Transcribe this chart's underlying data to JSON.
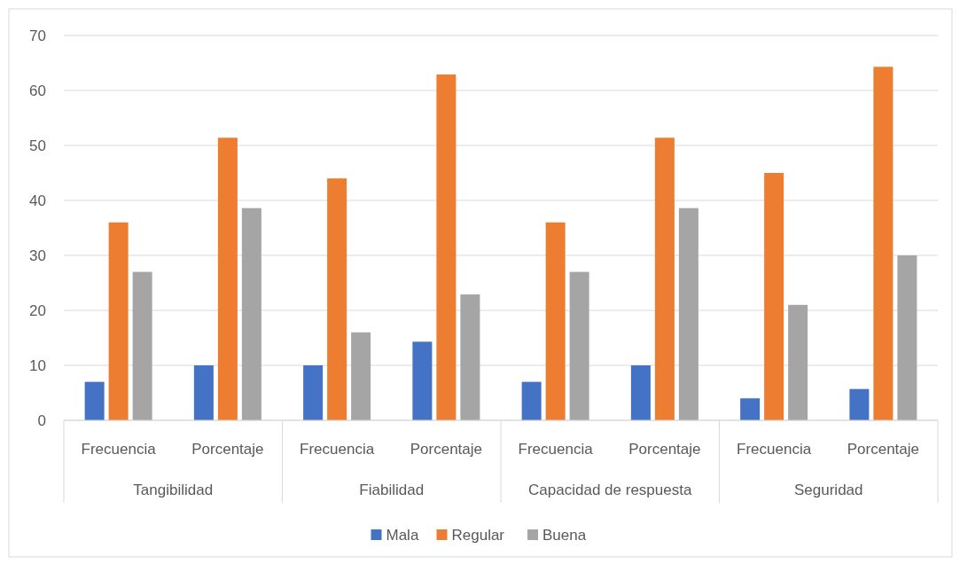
{
  "chart_data": {
    "type": "bar",
    "categories": [
      "Frecuencia",
      "Porcentaje",
      "Frecuencia",
      "Porcentaje",
      "Frecuencia",
      "Porcentaje",
      "Frecuencia",
      "Porcentaje"
    ],
    "annotations": [
      "Tangibilidad",
      "Fiabilidad",
      "Capacidad de respuesta",
      "Seguridad"
    ],
    "series": [
      {
        "name": "Mala",
        "color": "#4472c4",
        "values": [
          7,
          10,
          10,
          14.3,
          7,
          10,
          4,
          5.7
        ]
      },
      {
        "name": "Regular",
        "color": "#ed7d31",
        "values": [
          36,
          51.4,
          44,
          62.9,
          36,
          51.4,
          45,
          64.3
        ]
      },
      {
        "name": "Buena",
        "color": "#a5a5a5",
        "values": [
          27,
          38.6,
          16,
          22.9,
          27,
          38.6,
          21,
          30
        ]
      }
    ],
    "ylim": [
      0,
      70
    ],
    "yticks": [
      0,
      10,
      20,
      30,
      40,
      50,
      60,
      70
    ],
    "grid": "y",
    "legend": "bottom"
  }
}
